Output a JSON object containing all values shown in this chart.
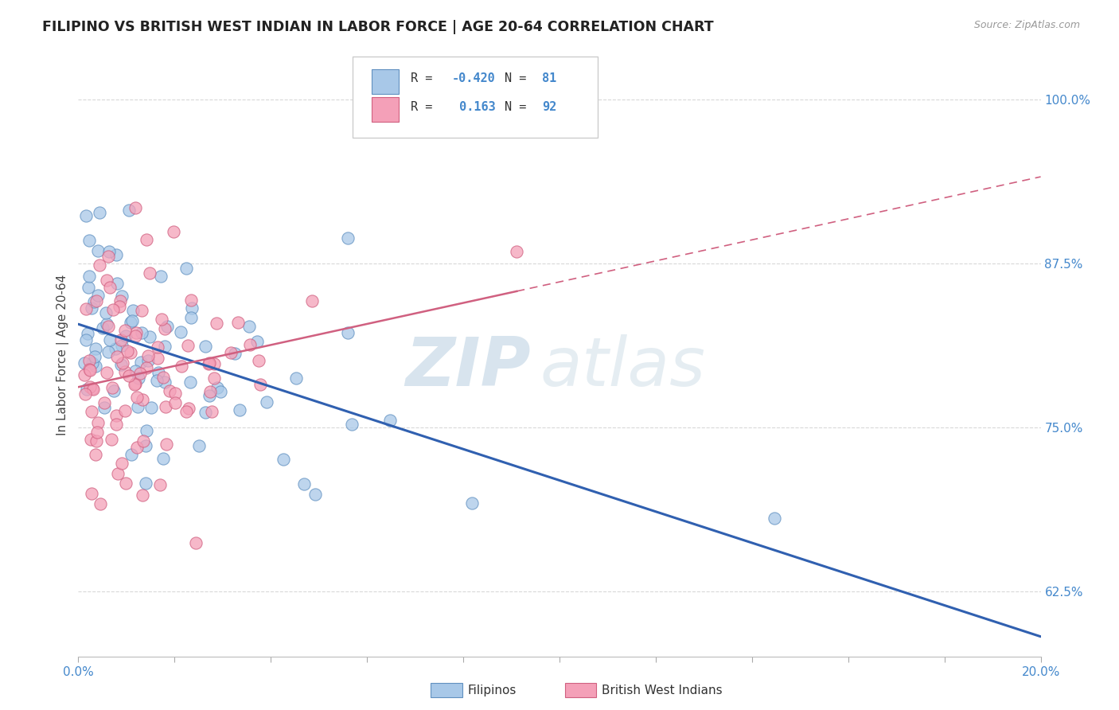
{
  "title": "FILIPINO VS BRITISH WEST INDIAN IN LABOR FORCE | AGE 20-64 CORRELATION CHART",
  "source_text": "Source: ZipAtlas.com",
  "ylabel": "In Labor Force | Age 20-64",
  "xlim": [
    0.0,
    0.2
  ],
  "ylim": [
    0.575,
    1.035
  ],
  "ytick_values": [
    0.625,
    0.75,
    0.875,
    1.0
  ],
  "ytick_labels": [
    "62.5%",
    "75.0%",
    "87.5%",
    "100.0%"
  ],
  "blue_color": "#a8c8e8",
  "pink_color": "#f4a0b8",
  "blue_edge_color": "#6090c0",
  "pink_edge_color": "#d06080",
  "blue_line_color": "#3060b0",
  "pink_line_color": "#d06080",
  "grid_color": "#d8d8d8",
  "title_color": "#222222",
  "axis_label_color": "#444444",
  "tick_label_color": "#4488cc",
  "watermark_zip_color": "#b8d8f0",
  "watermark_atlas_color": "#c8dde8",
  "blue_R": -0.42,
  "blue_N": 81,
  "pink_R": 0.163,
  "pink_N": 92
}
